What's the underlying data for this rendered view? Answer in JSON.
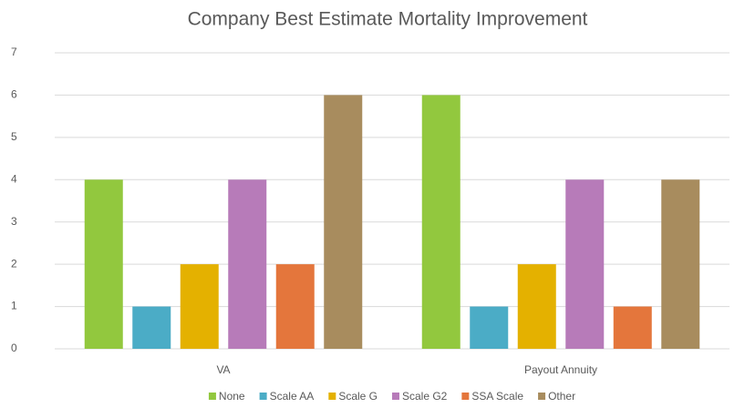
{
  "chart_data": {
    "type": "bar",
    "title": "Company Best Estimate Mortality Improvement",
    "categories": [
      "VA",
      "Payout Annuity"
    ],
    "series": [
      {
        "name": "None",
        "color": "#92c83e",
        "values": [
          4,
          6
        ]
      },
      {
        "name": "Scale AA",
        "color": "#4bacc6",
        "values": [
          1,
          1
        ]
      },
      {
        "name": "Scale G",
        "color": "#e4b100",
        "values": [
          2,
          2
        ]
      },
      {
        "name": "Scale G2",
        "color": "#b77bb9",
        "values": [
          4,
          4
        ]
      },
      {
        "name": "SSA Scale",
        "color": "#e4763c",
        "values": [
          2,
          1
        ]
      },
      {
        "name": "Other",
        "color": "#a88c5e",
        "values": [
          6,
          4
        ]
      }
    ],
    "ylim": [
      0,
      7
    ],
    "yticks": [
      0,
      1,
      2,
      3,
      4,
      5,
      6,
      7
    ],
    "grid": true,
    "legend": "bottom"
  }
}
